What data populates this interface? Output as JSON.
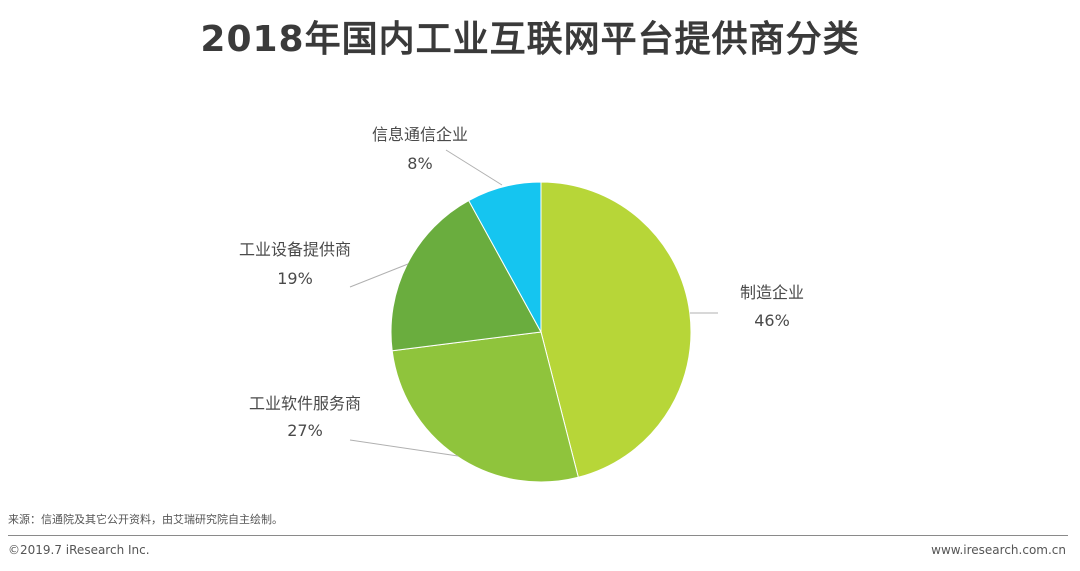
{
  "chart_data": {
    "type": "pie",
    "title": "2018年国内工业互联网平台提供商分类",
    "categories": [
      "制造企业",
      "工业软件服务商",
      "工业设备提供商",
      "信息通信企业"
    ],
    "values": [
      46,
      27,
      19,
      8
    ],
    "value_labels": [
      "46%",
      "27%",
      "19%",
      "8%"
    ],
    "colors": [
      "#b7d638",
      "#8fc43c",
      "#6aad3e",
      "#15c5f0"
    ],
    "start_angle": "12 o'clock",
    "direction": "clockwise",
    "legend": "none"
  },
  "footer": {
    "source": "来源：信通院及其它公开资料，由艾瑞研究院自主绘制。",
    "copyright": "©2019.7 iResearch Inc.",
    "website": "www.iresearch.com.cn"
  }
}
